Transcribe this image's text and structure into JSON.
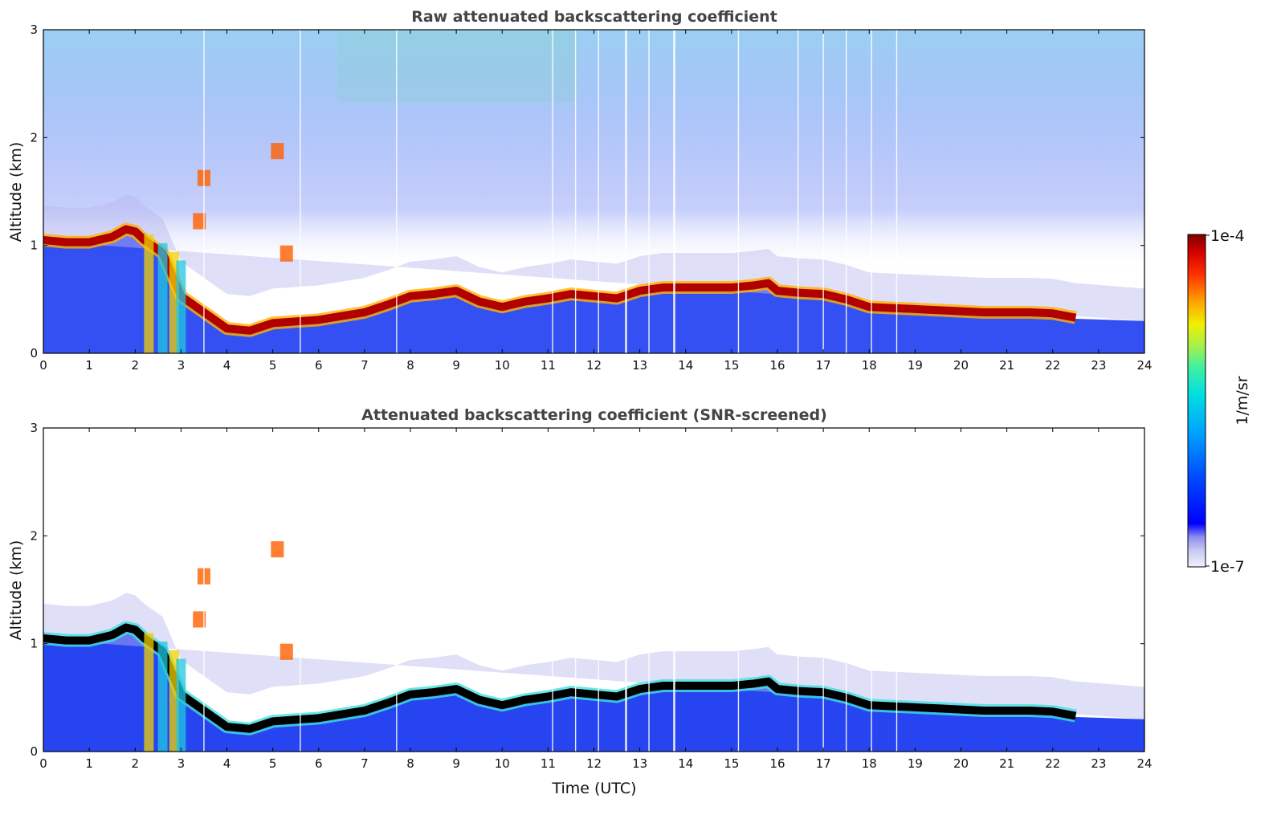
{
  "chart_data": [
    {
      "type": "heatmap",
      "title": "Raw attenuated backscattering coefficient",
      "xlabel": "",
      "ylabel": "Altitude (km)",
      "xlim": [
        0,
        24
      ],
      "ylim": [
        0,
        3
      ],
      "xticks": [
        "0",
        "1",
        "2",
        "3",
        "4",
        "5",
        "6",
        "7",
        "8",
        "9",
        "10",
        "11",
        "12",
        "13",
        "14",
        "15",
        "16",
        "17",
        "18",
        "19",
        "20",
        "21",
        "22",
        "23",
        "24"
      ],
      "yticks": [
        "0",
        "1",
        "2",
        "3"
      ],
      "layer_top_km": {
        "x": [
          0,
          0.5,
          1,
          1.5,
          1.8,
          2.0,
          2.2,
          2.6,
          3.0,
          4.0,
          4.5,
          5.0,
          6.0,
          7.0,
          7.5,
          8.0,
          8.5,
          9.0,
          9.5,
          10.0,
          10.5,
          11.0,
          11.5,
          12.0,
          12.5,
          13.0,
          13.5,
          14.0,
          14.5,
          15.0,
          15.5,
          15.8,
          16.0,
          16.5,
          17.0,
          17.5,
          18.0,
          18.5,
          19.0,
          19.5,
          20.0,
          20.5,
          21.0,
          21.5,
          22.0,
          22.5
        ],
        "y": [
          1.12,
          1.1,
          1.1,
          1.15,
          1.22,
          1.2,
          1.12,
          1.0,
          0.6,
          0.3,
          0.28,
          0.35,
          0.38,
          0.45,
          0.52,
          0.6,
          0.62,
          0.65,
          0.55,
          0.5,
          0.55,
          0.58,
          0.62,
          0.6,
          0.58,
          0.65,
          0.68,
          0.68,
          0.68,
          0.68,
          0.7,
          0.72,
          0.65,
          0.63,
          0.62,
          0.57,
          0.5,
          0.49,
          0.48,
          0.47,
          0.46,
          0.45,
          0.45,
          0.45,
          0.44,
          0.4
        ]
      }
    },
    {
      "type": "heatmap",
      "title": "Attenuated backscattering coefficient (SNR-screened)",
      "xlabel": "Time (UTC)",
      "ylabel": "Altitude (km)",
      "xlim": [
        0,
        24
      ],
      "ylim": [
        0,
        3
      ],
      "xticks": [
        "0",
        "1",
        "2",
        "3",
        "4",
        "5",
        "6",
        "7",
        "8",
        "9",
        "10",
        "11",
        "12",
        "13",
        "14",
        "15",
        "16",
        "17",
        "18",
        "19",
        "20",
        "21",
        "22",
        "23",
        "24"
      ],
      "yticks": [
        "0",
        "1",
        "2",
        "3"
      ]
    }
  ],
  "colorbar": {
    "label": "1/m/sr",
    "max_label": "1e-4",
    "min_label": "1e-7",
    "colors": [
      "#f0f0fa",
      "#c8c8f0",
      "#8c8cf0",
      "#0000ff",
      "#0050ff",
      "#00a0ff",
      "#00e0e0",
      "#40f0a0",
      "#a0f050",
      "#f0f000",
      "#ffa000",
      "#ff3000",
      "#d00000",
      "#800000"
    ]
  }
}
